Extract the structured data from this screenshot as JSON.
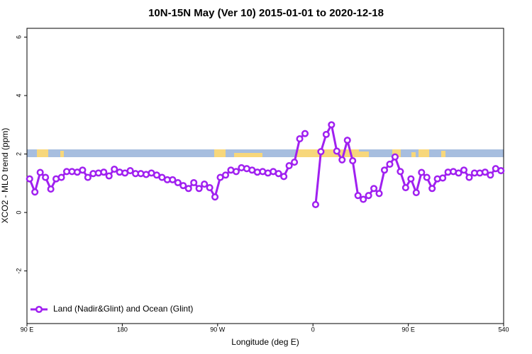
{
  "chart_data": {
    "type": "line",
    "title": "10N-15N May (Ver 10)   2015-01-01 to 2020-12-18",
    "x_label": "Longitude (deg E)",
    "y_label": "XCO2 - MLO trend (ppm)",
    "xlim": [
      90,
      540
    ],
    "ylim": [
      -3.8,
      6.3
    ],
    "xticks": [
      {
        "value": 90,
        "label": "90 E"
      },
      180,
      {
        "value": 270,
        "label": "90 W"
      },
      {
        "value": 360,
        "label": "0"
      },
      {
        "value": 450,
        "label": "90 E"
      },
      540
    ],
    "yticks": [
      -2,
      0,
      2,
      4,
      6
    ],
    "x": [
      92.5,
      97.5,
      102.5,
      107.5,
      112.5,
      117.5,
      122.5,
      127.5,
      132.5,
      137.5,
      142.5,
      147.5,
      152.5,
      157.5,
      162.5,
      167.5,
      172.5,
      177.5,
      182.5,
      187.5,
      192.5,
      197.5,
      202.5,
      207.5,
      212.5,
      217.5,
      222.5,
      227.5,
      232.5,
      237.5,
      242.5,
      247.5,
      252.5,
      257.5,
      262.5,
      267.5,
      272.5,
      277.5,
      282.5,
      287.5,
      292.5,
      297.5,
      302.5,
      307.5,
      312.5,
      317.5,
      322.5,
      327.5,
      332.5,
      337.5,
      342.5,
      347.5,
      352.5,
      357.5,
      362.5,
      367.5,
      372.5,
      377.5,
      382.5,
      387.5,
      392.5,
      397.5,
      402.5,
      407.5,
      412.5,
      417.5,
      422.5,
      427.5,
      432.5,
      437.5,
      442.5,
      447.5,
      452.5,
      457.5,
      462.5,
      467.5,
      472.5,
      477.5,
      482.5,
      487.5,
      492.5,
      497.5,
      502.5,
      507.5,
      512.5,
      517.5,
      522.5,
      527.5,
      532.5,
      537.5
    ],
    "series": [
      {
        "name": "Land (Nadir&Glint) and Ocean (Glint)",
        "color": "#a020f0",
        "values": [
          1.15,
          0.7,
          1.37,
          1.2,
          0.8,
          1.15,
          1.2,
          1.4,
          1.4,
          1.38,
          1.45,
          1.2,
          1.33,
          1.35,
          1.38,
          1.25,
          1.48,
          1.38,
          1.35,
          1.43,
          1.33,
          1.33,
          1.3,
          1.35,
          1.28,
          1.2,
          1.12,
          1.12,
          1.02,
          0.92,
          0.82,
          1.02,
          0.82,
          0.97,
          0.85,
          0.53,
          1.2,
          1.28,
          1.45,
          1.4,
          1.53,
          1.5,
          1.45,
          1.38,
          1.4,
          1.35,
          1.4,
          1.33,
          1.23,
          1.6,
          1.72,
          2.52,
          2.7,
          null,
          0.27,
          2.08,
          2.67,
          3.0,
          2.1,
          1.8,
          2.47,
          1.77,
          0.58,
          0.45,
          0.58,
          0.82,
          0.65,
          1.45,
          1.65,
          1.9,
          1.4,
          0.85,
          1.15,
          0.68,
          1.37,
          1.2,
          0.82,
          1.15,
          1.18,
          1.38,
          1.4,
          1.35,
          1.45,
          1.2,
          1.35,
          1.35,
          1.38,
          1.28,
          1.5,
          1.43
        ]
      }
    ],
    "legend": "bottom-left"
  }
}
